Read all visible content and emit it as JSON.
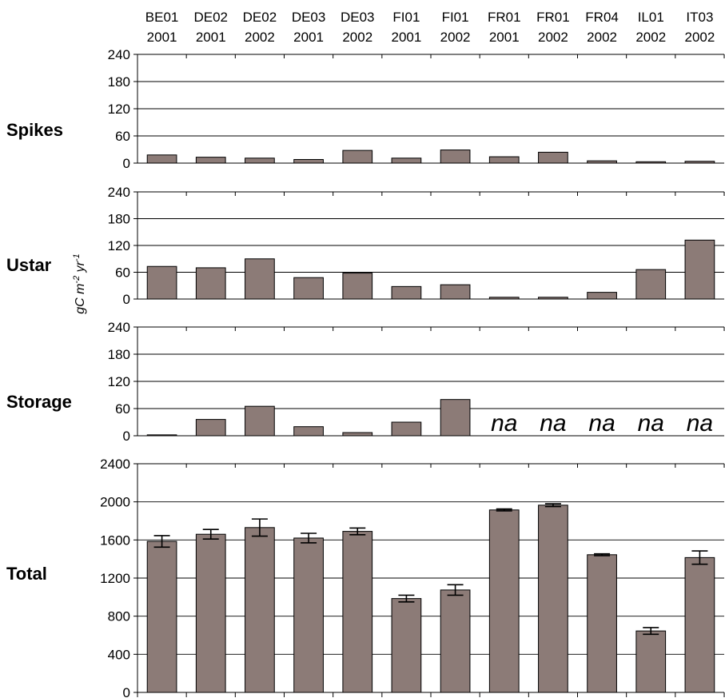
{
  "chart_data": {
    "type": "bar",
    "categories": [
      {
        "site": "BE01",
        "year": "2001"
      },
      {
        "site": "DE02",
        "year": "2001"
      },
      {
        "site": "DE02",
        "year": "2002"
      },
      {
        "site": "DE03",
        "year": "2001"
      },
      {
        "site": "DE03",
        "year": "2002"
      },
      {
        "site": "FI01",
        "year": "2001"
      },
      {
        "site": "FI01",
        "year": "2002"
      },
      {
        "site": "FR01",
        "year": "2001"
      },
      {
        "site": "FR01",
        "year": "2002"
      },
      {
        "site": "FR04",
        "year": "2002"
      },
      {
        "site": "IL01",
        "year": "2002"
      },
      {
        "site": "IT03",
        "year": "2002"
      }
    ],
    "units_label": {
      "base": "gC m",
      "exp1": "-2",
      "mid": " yr",
      "exp2": "-1"
    },
    "bar_color": "#8c7b77",
    "na_label": "na",
    "panels": [
      {
        "label": "Spikes",
        "ylim": [
          0,
          240
        ],
        "ticks": [
          "0",
          "60",
          "120",
          "180",
          "240"
        ],
        "values": [
          18,
          13,
          11,
          8,
          28,
          11,
          29,
          14,
          24,
          5,
          3,
          4
        ]
      },
      {
        "label": "Ustar",
        "ylim": [
          0,
          240
        ],
        "ticks": [
          "0",
          "60",
          "120",
          "180",
          "240"
        ],
        "values": [
          73,
          70,
          90,
          48,
          58,
          28,
          32,
          4,
          4,
          15,
          66,
          132
        ]
      },
      {
        "label": "Storage",
        "ylim": [
          0,
          240
        ],
        "ticks": [
          "0",
          "60",
          "120",
          "180",
          "240"
        ],
        "values": [
          2,
          36,
          65,
          20,
          7,
          30,
          80,
          null,
          null,
          null,
          null,
          null
        ]
      },
      {
        "label": "Total",
        "ylim": [
          0,
          2400
        ],
        "ticks": [
          "0",
          "400",
          "800",
          "1200",
          "1600",
          "2000",
          "2400"
        ],
        "values": [
          1585,
          1660,
          1730,
          1620,
          1690,
          985,
          1075,
          1915,
          1965,
          1445,
          645,
          1415
        ],
        "errors": [
          60,
          50,
          90,
          50,
          35,
          35,
          55,
          10,
          15,
          10,
          35,
          70
        ]
      }
    ]
  }
}
